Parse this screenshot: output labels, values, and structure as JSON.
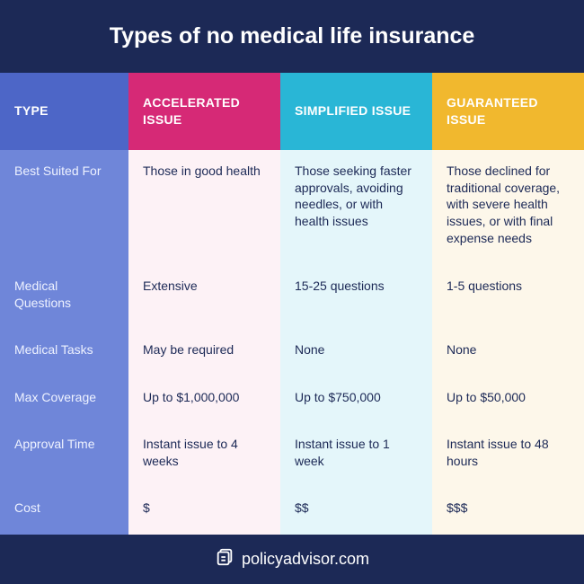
{
  "title": "Types of no medical life insurance",
  "footer_brand": "policyadvisor.com",
  "colors": {
    "title_bg": "#1c2956",
    "type_hdr_bg": "#4d66c7",
    "type_col_bg": "#6f86d9",
    "col1_hdr_bg": "#d62976",
    "col1_bg": "#fdf2f6",
    "col2_hdr_bg": "#29b6d6",
    "col2_bg": "#e4f6fa",
    "col3_hdr_bg": "#f1b82e",
    "col3_bg": "#fdf7ea",
    "hdr_text": "#ffffff",
    "val_text": "#1c2956",
    "rowlabel_text": "#eef2ff"
  },
  "headers": {
    "type": "TYPE",
    "col1": "ACCELERATED ISSUE",
    "col2": "SIMPLIFIED ISSUE",
    "col3": "GUARANTEED ISSUE"
  },
  "rows": [
    {
      "label": "Best Suited For",
      "col1": "Those in good health",
      "col2": "Those seeking faster approvals, avoiding needles, or with health issues",
      "col3": "Those declined for traditional coverage, with severe health issues, or with final expense needs",
      "tall": true
    },
    {
      "label": "Medical Questions",
      "col1": "Extensive",
      "col2": "15-25 questions",
      "col3": "1-5 questions"
    },
    {
      "label": "Medical Tasks",
      "col1": "May be required",
      "col2": "None",
      "col3": "None"
    },
    {
      "label": "Max Coverage",
      "col1": "Up to $1,000,000",
      "col2": "Up to $750,000",
      "col3": "Up to $50,000"
    },
    {
      "label": "Approval Time",
      "col1": "Instant issue to 4 weeks",
      "col2": "Instant issue to 1 week",
      "col3": "Instant issue to 48 hours"
    },
    {
      "label": "Cost",
      "col1": "$",
      "col2": "$$",
      "col3": "$$$"
    }
  ]
}
